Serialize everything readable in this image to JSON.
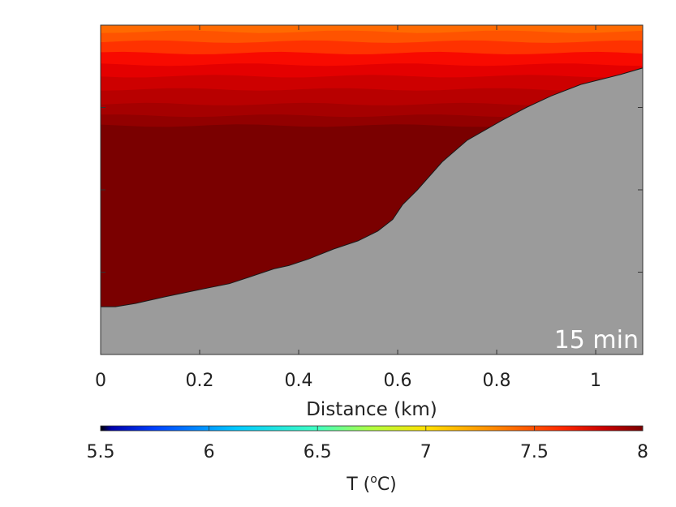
{
  "chart_data": {
    "type": "heatmap",
    "title": "",
    "xlabel": "Distance (km)",
    "ylabel": "",
    "xlim": [
      0,
      1.095
    ],
    "x_ticks": [
      0,
      0.2,
      0.4,
      0.6,
      0.8,
      1
    ],
    "x_tick_labels": [
      "0",
      "0.2",
      "0.4",
      "0.6",
      "0.8",
      "1"
    ],
    "y_ticks": [
      0,
      0.25,
      0.5,
      0.75,
      1
    ],
    "grid": false,
    "annotation": "15 min",
    "seabed_color": "#9b9b9b",
    "seabed_profile": {
      "x": [
        0,
        0.03,
        0.07,
        0.13,
        0.21,
        0.26,
        0.3,
        0.35,
        0.38,
        0.42,
        0.47,
        0.52,
        0.56,
        0.59,
        0.61,
        0.64,
        0.69,
        0.74,
        0.81,
        0.86,
        0.91,
        0.97,
        1.01,
        1.05,
        1.095
      ],
      "depth_fraction": [
        0.855,
        0.855,
        0.845,
        0.825,
        0.8,
        0.785,
        0.765,
        0.74,
        0.73,
        0.71,
        0.68,
        0.655,
        0.625,
        0.59,
        0.545,
        0.5,
        0.415,
        0.35,
        0.29,
        0.25,
        0.215,
        0.18,
        0.165,
        0.15,
        0.13
      ]
    },
    "temperature_layers": {
      "depth_fraction_top": [
        0,
        0.02,
        0.05,
        0.085,
        0.12,
        0.155,
        0.195,
        0.24,
        0.275,
        0.305
      ],
      "temperature": [
        7.45,
        7.5,
        7.55,
        7.6,
        7.65,
        7.7,
        7.75,
        7.8,
        7.85,
        7.9
      ],
      "color": [
        "#ff6a00",
        "#ff5300",
        "#ff3200",
        "#f80a00",
        "#e40000",
        "#cd0000",
        "#b80000",
        "#a50000",
        "#920000",
        "#7a0000"
      ]
    },
    "colorbar": {
      "label": "T (",
      "label_sup": "o",
      "label_unit": "C)",
      "range": [
        5.5,
        8
      ],
      "ticks": [
        5.5,
        6,
        6.5,
        7,
        7.5,
        8
      ],
      "tick_labels": [
        "5.5",
        "6",
        "6.5",
        "7",
        "7.5",
        "8"
      ],
      "gradient": [
        "#000000",
        "#0000aa",
        "#0040ff",
        "#00c8ff",
        "#40ffc0",
        "#b0ff40",
        "#ffe000",
        "#ff8c00",
        "#ff2800",
        "#c80000",
        "#7a0000"
      ],
      "gradient_stops": [
        0,
        0.02,
        0.1,
        0.25,
        0.4,
        0.5,
        0.6,
        0.72,
        0.85,
        0.93,
        1
      ]
    }
  }
}
